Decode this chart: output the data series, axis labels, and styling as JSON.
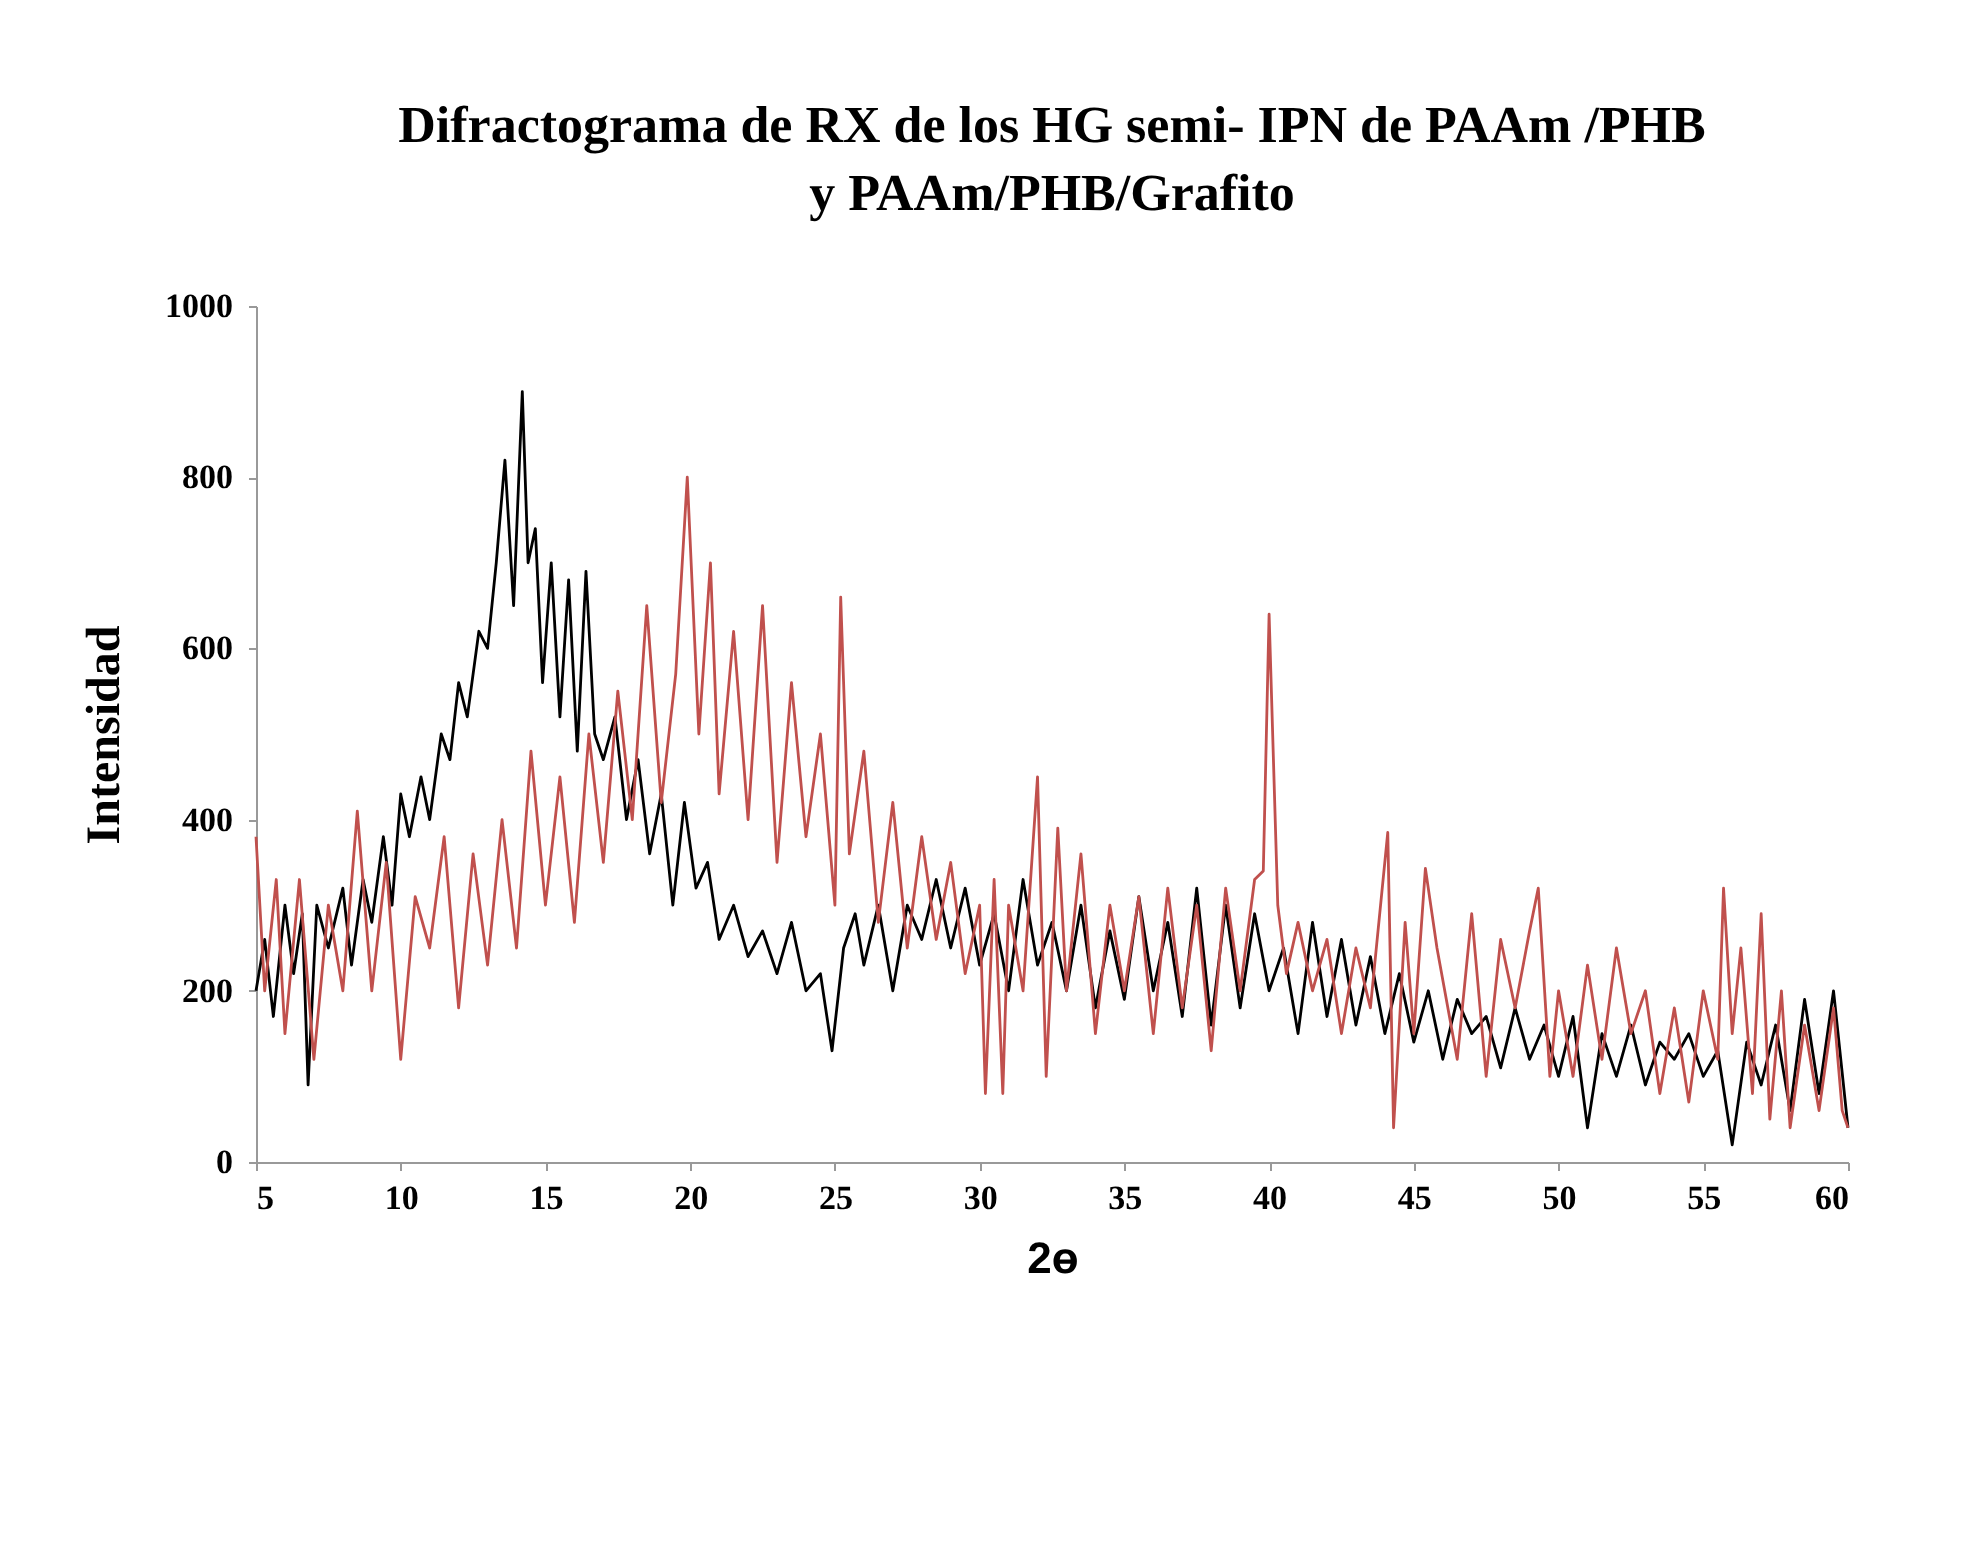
{
  "chart_data": {
    "type": "line",
    "title": [
      "Difractograma de RX de los HG semi- IPN de PAAm /PHB",
      "y PAAm/PHB/Grafito"
    ],
    "xlabel": "2ɵ",
    "ylabel": "Intensidad",
    "xlim": [
      5,
      60
    ],
    "xticks": [
      5,
      10,
      15,
      20,
      25,
      30,
      35,
      40,
      45,
      50,
      55,
      60
    ],
    "ylim": [
      0,
      1000
    ],
    "yticks": [
      0,
      200,
      400,
      600,
      800,
      1000
    ],
    "grid": false,
    "marker": "none",
    "line_style": "solid",
    "series": [
      {
        "color": "#000000",
        "x": [
          5,
          5.3,
          5.6,
          6,
          6.3,
          6.6,
          6.8,
          7.1,
          7.5,
          8,
          8.3,
          8.7,
          9,
          9.4,
          9.7,
          10,
          10.3,
          10.7,
          11,
          11.4,
          11.7,
          12,
          12.3,
          12.7,
          13,
          13.3,
          13.6,
          13.9,
          14.2,
          14.4,
          14.65,
          14.9,
          15.2,
          15.5,
          15.8,
          16.1,
          16.4,
          16.7,
          17,
          17.4,
          17.8,
          18.2,
          18.6,
          19,
          19.4,
          19.8,
          20.2,
          20.6,
          21,
          21.5,
          22,
          22.5,
          23,
          23.5,
          24,
          24.5,
          24.9,
          25.3,
          25.7,
          26,
          26.5,
          27,
          27.5,
          28,
          28.5,
          29,
          29.5,
          30,
          30.5,
          31,
          31.5,
          32,
          32.5,
          33,
          33.5,
          34,
          34.5,
          35,
          35.5,
          36,
          36.5,
          37,
          37.5,
          38,
          38.5,
          39,
          39.5,
          40,
          40.5,
          41,
          41.5,
          42,
          42.5,
          43,
          43.5,
          44,
          44.5,
          45,
          45.5,
          46,
          46.5,
          47,
          47.5,
          48,
          48.5,
          49,
          49.5,
          50,
          50.5,
          51,
          51.5,
          52,
          52.5,
          53,
          53.5,
          54,
          54.5,
          55,
          55.5,
          56,
          56.5,
          57,
          57.5,
          58,
          58.5,
          59,
          59.5,
          60
        ],
        "values": [
          200,
          260,
          170,
          300,
          220,
          290,
          90,
          300,
          250,
          320,
          230,
          330,
          280,
          380,
          300,
          430,
          380,
          450,
          400,
          500,
          470,
          560,
          520,
          620,
          600,
          700,
          820,
          650,
          900,
          700,
          740,
          560,
          700,
          520,
          680,
          480,
          690,
          500,
          470,
          520,
          400,
          470,
          360,
          430,
          300,
          420,
          320,
          350,
          260,
          300,
          240,
          270,
          220,
          280,
          200,
          220,
          130,
          250,
          290,
          230,
          300,
          200,
          300,
          260,
          330,
          250,
          320,
          230,
          290,
          200,
          330,
          230,
          280,
          200,
          300,
          180,
          270,
          190,
          310,
          200,
          280,
          170,
          320,
          160,
          300,
          180,
          290,
          200,
          250,
          150,
          280,
          170,
          260,
          160,
          240,
          150,
          220,
          140,
          200,
          120,
          190,
          150,
          170,
          110,
          180,
          120,
          160,
          100,
          170,
          40,
          150,
          100,
          160,
          90,
          140,
          120,
          150,
          100,
          130,
          20,
          140,
          90,
          160,
          60,
          190,
          80,
          200,
          40
        ]
      },
      {
        "color": "#c0504d",
        "x": [
          5,
          5.3,
          5.7,
          6,
          6.5,
          7,
          7.5,
          8,
          8.5,
          9,
          9.5,
          10,
          10.5,
          11,
          11.5,
          12,
          12.5,
          13,
          13.5,
          14,
          14.5,
          15,
          15.5,
          16,
          16.5,
          17,
          17.5,
          18,
          18.5,
          19,
          19.5,
          19.9,
          20.3,
          20.7,
          21,
          21.5,
          22,
          22.5,
          23,
          23.5,
          24,
          24.5,
          25,
          25.2,
          25.5,
          26,
          26.5,
          27,
          27.5,
          28,
          28.5,
          29,
          29.5,
          30,
          30.2,
          30.5,
          30.8,
          31,
          31.5,
          32,
          32.3,
          32.7,
          33,
          33.5,
          34,
          34.5,
          35,
          35.5,
          36,
          36.5,
          37,
          37.5,
          38,
          38.5,
          39,
          39.5,
          39.8,
          40,
          40.3,
          40.6,
          41,
          41.5,
          42,
          42.5,
          43,
          43.5,
          44.1,
          44.3,
          44.7,
          45,
          45.4,
          45.8,
          46.5,
          47,
          47.5,
          48,
          48.5,
          49,
          49.3,
          49.7,
          50,
          50.5,
          51,
          51.5,
          52,
          52.5,
          53,
          53.5,
          54,
          54.5,
          55,
          55.5,
          55.7,
          56,
          56.3,
          56.7,
          57,
          57.3,
          57.7,
          58,
          58.5,
          59,
          59.5,
          59.8,
          60
        ],
        "values": [
          380,
          200,
          330,
          150,
          330,
          120,
          300,
          200,
          410,
          200,
          350,
          120,
          310,
          250,
          380,
          180,
          360,
          230,
          400,
          250,
          480,
          300,
          450,
          280,
          500,
          350,
          550,
          400,
          650,
          420,
          570,
          800,
          500,
          700,
          430,
          620,
          400,
          650,
          350,
          560,
          380,
          500,
          300,
          660,
          360,
          480,
          280,
          420,
          250,
          380,
          260,
          350,
          220,
          300,
          80,
          330,
          80,
          300,
          200,
          450,
          100,
          390,
          200,
          360,
          150,
          300,
          200,
          310,
          150,
          320,
          180,
          300,
          130,
          320,
          200,
          330,
          340,
          640,
          300,
          220,
          280,
          200,
          260,
          150,
          250,
          180,
          385,
          40,
          280,
          150,
          343,
          250,
          120,
          290,
          100,
          260,
          180,
          270,
          320,
          100,
          200,
          100,
          230,
          120,
          250,
          150,
          200,
          80,
          180,
          70,
          200,
          120,
          320,
          150,
          250,
          80,
          290,
          50,
          200,
          40,
          160,
          60,
          180,
          60,
          40
        ]
      }
    ]
  }
}
